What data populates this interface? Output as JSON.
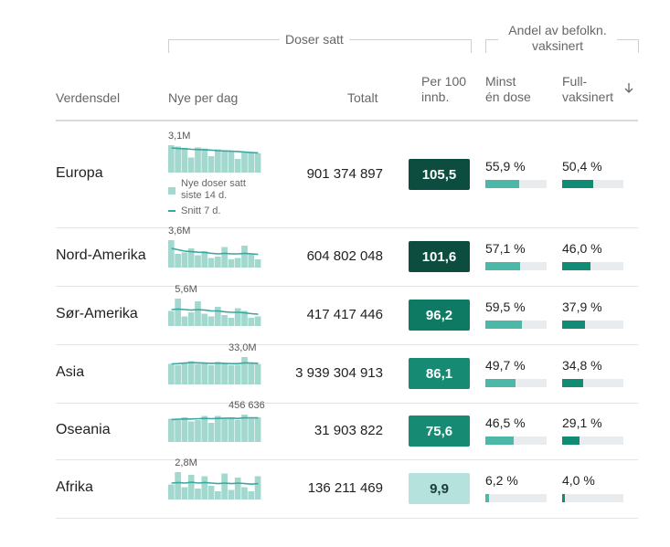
{
  "header": {
    "group_doses": "Doser satt",
    "group_share": "Andel av befolkn. vaksinert",
    "col_region": "Verdensdel",
    "col_daily": "Nye per dag",
    "col_total": "Totalt",
    "col_per100_l1": "Per 100",
    "col_per100_l2": "innb.",
    "col_min_l1": "Minst",
    "col_min_l2": "én dose",
    "col_full_l1": "Full-",
    "col_full_l2": "vaksinert",
    "sort_icon": "arrow-down-icon"
  },
  "legend": {
    "bars_l1": "Nye doser satt",
    "bars_l2": "siste 14 d.",
    "line": "Snitt 7 d."
  },
  "colors": {
    "spark_bar": "#a3d8cf",
    "spark_line": "#3aa7a0",
    "min_bar": "#4db8a8",
    "full_bar": "#0f8c73",
    "track": "#e8ecee"
  },
  "chart_data": {
    "type": "table",
    "columns": [
      "Verdensdel",
      "Nye per dag",
      "Totalt",
      "Per 100 innb.",
      "Minst én dose",
      "Fullvaksinert"
    ],
    "rows": [
      {
        "region": "Europa",
        "peak_label": "3,1M",
        "total": "901 374 897",
        "per100": "105,5",
        "per100_value": 105.5,
        "min_label": "55,9 %",
        "min_value": 55.9,
        "full_label": "50,4 %",
        "full_value": 50.4,
        "daily_bars": [
          1.0,
          0.95,
          0.9,
          0.55,
          0.92,
          0.88,
          0.6,
          0.85,
          0.8,
          0.78,
          0.5,
          0.75,
          0.72,
          0.7
        ],
        "daily_avg": [
          0.9,
          0.88,
          0.87,
          0.85,
          0.84,
          0.83,
          0.82,
          0.8,
          0.79,
          0.78,
          0.77,
          0.75,
          0.73,
          0.72
        ]
      },
      {
        "region": "Nord-Amerika",
        "peak_label": "3,6M",
        "total": "604 802 048",
        "per100": "101,6",
        "per100_value": 101.6,
        "min_label": "57,1 %",
        "min_value": 57.1,
        "full_label": "46,0 %",
        "full_value": 46.0,
        "daily_bars": [
          1.0,
          0.5,
          0.55,
          0.7,
          0.45,
          0.6,
          0.35,
          0.4,
          0.75,
          0.3,
          0.35,
          0.8,
          0.5,
          0.3
        ],
        "daily_avg": [
          0.7,
          0.65,
          0.6,
          0.58,
          0.56,
          0.55,
          0.52,
          0.5,
          0.52,
          0.5,
          0.5,
          0.52,
          0.5,
          0.48
        ]
      },
      {
        "region": "Sør-Amerika",
        "peak_label": "5,6M",
        "total": "417 417 446",
        "per100": "96,2",
        "per100_value": 96.2,
        "min_label": "59,5 %",
        "min_value": 59.5,
        "full_label": "37,9 %",
        "full_value": 37.9,
        "daily_bars": [
          0.55,
          1.0,
          0.35,
          0.5,
          0.9,
          0.45,
          0.35,
          0.7,
          0.4,
          0.3,
          0.65,
          0.55,
          0.3,
          0.35
        ],
        "daily_avg": [
          0.6,
          0.62,
          0.6,
          0.58,
          0.6,
          0.58,
          0.55,
          0.55,
          0.52,
          0.5,
          0.5,
          0.48,
          0.45,
          0.43
        ]
      },
      {
        "region": "Asia",
        "peak_label": "33,0M",
        "total": "3 939 304 913",
        "per100": "86,1",
        "per100_value": 86.1,
        "min_label": "49,7 %",
        "min_value": 49.7,
        "full_label": "34,8 %",
        "full_value": 34.8,
        "daily_bars": [
          0.75,
          0.7,
          0.8,
          0.85,
          0.75,
          0.8,
          0.7,
          0.82,
          0.75,
          0.7,
          0.72,
          1.0,
          0.8,
          0.75
        ],
        "daily_avg": [
          0.75,
          0.76,
          0.78,
          0.8,
          0.79,
          0.78,
          0.77,
          0.78,
          0.77,
          0.76,
          0.76,
          0.79,
          0.78,
          0.77
        ]
      },
      {
        "region": "Oseania",
        "peak_label": "456 636",
        "total": "31 903 822",
        "per100": "75,6",
        "per100_value": 75.6,
        "min_label": "46,5 %",
        "min_value": 46.5,
        "full_label": "29,1 %",
        "full_value": 29.1,
        "daily_bars": [
          0.85,
          0.8,
          0.9,
          0.75,
          0.8,
          0.95,
          0.7,
          0.95,
          0.85,
          0.9,
          0.8,
          1.0,
          0.85,
          0.9
        ],
        "daily_avg": [
          0.82,
          0.83,
          0.84,
          0.84,
          0.85,
          0.86,
          0.85,
          0.86,
          0.87,
          0.87,
          0.86,
          0.88,
          0.88,
          0.88
        ]
      },
      {
        "region": "Afrika",
        "peak_label": "2,8M",
        "total": "136 211 469",
        "per100": "9,9",
        "per100_value": 9.9,
        "min_label": "6,2 %",
        "min_value": 6.2,
        "full_label": "4,0 %",
        "full_value": 4.0,
        "daily_bars": [
          0.55,
          1.0,
          0.45,
          0.9,
          0.4,
          0.85,
          0.5,
          0.3,
          0.95,
          0.35,
          0.8,
          0.45,
          0.3,
          0.85
        ],
        "daily_avg": [
          0.6,
          0.62,
          0.6,
          0.63,
          0.6,
          0.62,
          0.6,
          0.58,
          0.6,
          0.58,
          0.6,
          0.58,
          0.56,
          0.58
        ]
      }
    ]
  }
}
